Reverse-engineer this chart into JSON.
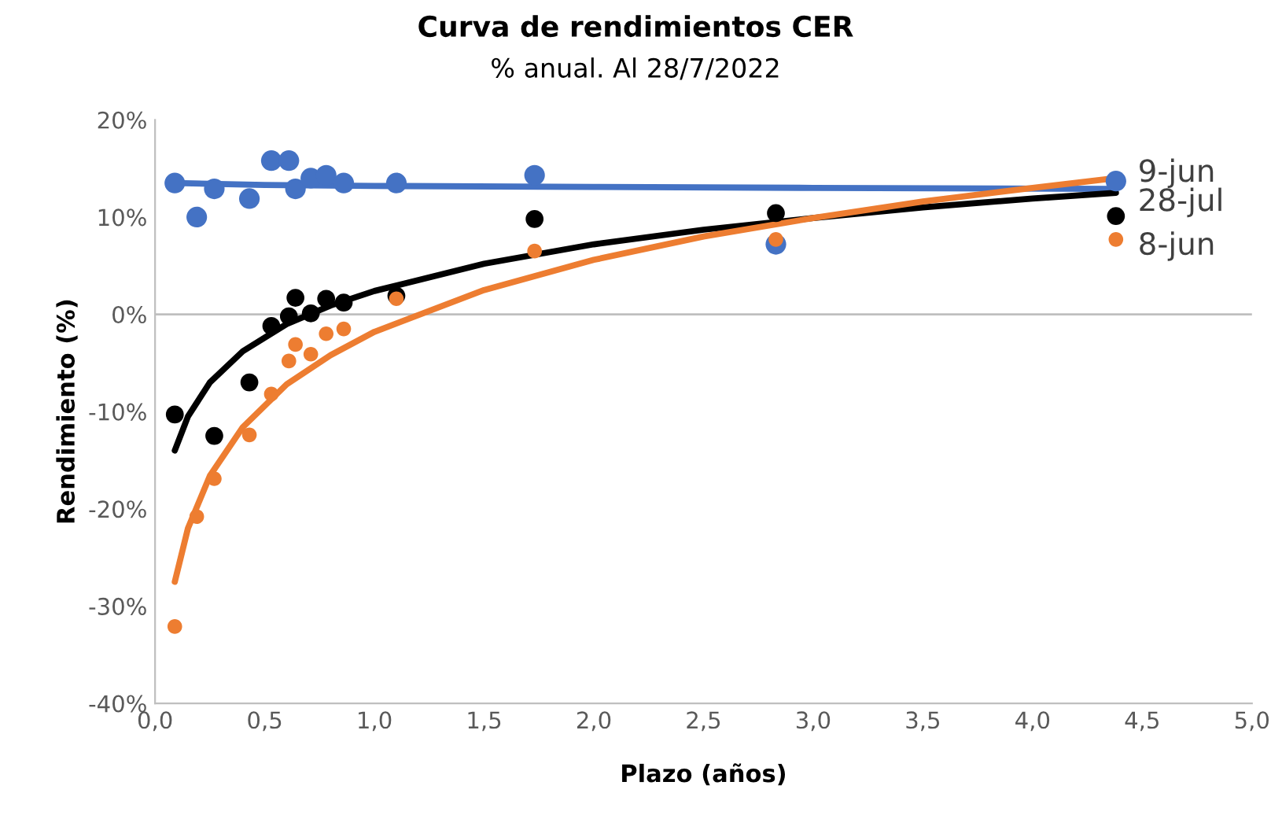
{
  "chart_data": {
    "type": "scatter",
    "title": "Curva de rendimientos CER",
    "subtitle": "% anual. Al 28/7/2022",
    "xlabel": "Plazo (años)",
    "ylabel": "Rendimiento (%)",
    "xlim": [
      0,
      5
    ],
    "ylim": [
      -40,
      20
    ],
    "xticks": [
      {
        "value": 0,
        "label": "0,0"
      },
      {
        "value": 0.5,
        "label": "0,5"
      },
      {
        "value": 1,
        "label": "1,0"
      },
      {
        "value": 1.5,
        "label": "1,5"
      },
      {
        "value": 2,
        "label": "2,0"
      },
      {
        "value": 2.5,
        "label": "2,5"
      },
      {
        "value": 3,
        "label": "3,0"
      },
      {
        "value": 3.5,
        "label": "3,5"
      },
      {
        "value": 4,
        "label": "4,0"
      },
      {
        "value": 4.5,
        "label": "4,5"
      },
      {
        "value": 5,
        "label": "5,0"
      }
    ],
    "yticks": [
      {
        "value": -40,
        "label": "-40%"
      },
      {
        "value": -30,
        "label": "-30%"
      },
      {
        "value": -20,
        "label": "-20%"
      },
      {
        "value": -10,
        "label": "-10%"
      },
      {
        "value": 0,
        "label": "0%"
      },
      {
        "value": 10,
        "label": "10%"
      },
      {
        "value": 20,
        "label": "20%"
      }
    ],
    "grid": false,
    "legend": false,
    "marker": "circle",
    "ref_lines": [
      {
        "axis": "y",
        "value": 0
      }
    ],
    "series": [
      {
        "name": "9-jun",
        "color": "#4472c4",
        "x": [
          0.09,
          0.19,
          0.27,
          0.43,
          0.53,
          0.61,
          0.64,
          0.71,
          0.78,
          0.86,
          1.1,
          1.73,
          2.83,
          4.38
        ],
        "values": [
          13.5,
          10.0,
          12.9,
          11.9,
          15.8,
          15.8,
          12.9,
          14.0,
          14.3,
          13.5,
          13.5,
          14.3,
          7.2,
          13.7
        ]
      },
      {
        "name": "28-jul",
        "color": "#000000",
        "x": [
          0.09,
          0.27,
          0.43,
          0.53,
          0.61,
          0.64,
          0.71,
          0.78,
          0.86,
          1.1,
          1.73,
          2.83,
          4.38
        ],
        "values": [
          -10.3,
          -12.5,
          -7.0,
          -1.2,
          -0.2,
          1.7,
          0.1,
          1.6,
          1.2,
          1.9,
          9.8,
          10.4,
          10.1
        ]
      },
      {
        "name": "8-jun",
        "color": "#ed7d31",
        "x": [
          0.09,
          0.19,
          0.27,
          0.43,
          0.53,
          0.61,
          0.64,
          0.71,
          0.78,
          0.86,
          1.1,
          1.73,
          2.83,
          4.38
        ],
        "values": [
          -32.1,
          -20.8,
          -16.9,
          -12.4,
          -8.2,
          -4.8,
          -3.1,
          -4.1,
          -2.0,
          -1.5,
          1.6,
          6.5,
          7.7,
          7.7
        ]
      },
      {
        "type": "line",
        "marker": "none",
        "color": "#4472c4",
        "x": [
          0.09,
          0.5,
          1.0,
          2.0,
          3.0,
          4.38
        ],
        "values": [
          13.5,
          13.3,
          13.2,
          13.1,
          13.0,
          12.9
        ]
      },
      {
        "type": "line",
        "marker": "none",
        "color": "#000000",
        "x": [
          0.09,
          0.15,
          0.25,
          0.4,
          0.6,
          0.8,
          1.0,
          1.5,
          2.0,
          2.5,
          3.0,
          3.5,
          4.0,
          4.38
        ],
        "values": [
          -14.0,
          -10.5,
          -7.0,
          -3.8,
          -1.0,
          0.9,
          2.4,
          5.2,
          7.2,
          8.7,
          9.9,
          11.0,
          11.9,
          12.5
        ]
      },
      {
        "type": "line",
        "marker": "none",
        "color": "#ed7d31",
        "x": [
          0.09,
          0.15,
          0.25,
          0.4,
          0.6,
          0.8,
          1.0,
          1.5,
          2.0,
          2.5,
          3.0,
          3.5,
          4.0,
          4.38
        ],
        "values": [
          -27.5,
          -22.0,
          -16.6,
          -11.6,
          -7.2,
          -4.2,
          -1.8,
          2.5,
          5.6,
          8.0,
          9.9,
          11.6,
          13.0,
          14.0
        ]
      }
    ]
  }
}
